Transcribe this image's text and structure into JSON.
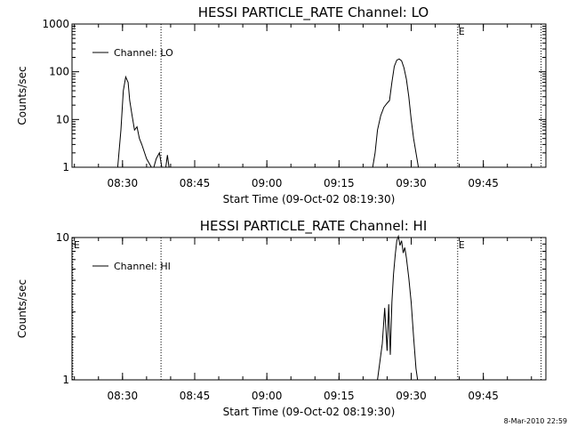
{
  "footer": {
    "timestamp": "8-Mar-2010 22:59"
  },
  "chart_data": [
    {
      "type": "line",
      "title": "HESSI PARTICLE_RATE Channel: LO",
      "xlabel": "Start Time (09-Oct-02 08:19:30)",
      "ylabel": "Counts/sec",
      "yscale": "log",
      "ylim": [
        1,
        1000
      ],
      "xlim": [
        "08:19:30",
        "09:58:00"
      ],
      "y_ticks": [
        "1",
        "10",
        "100",
        "1000"
      ],
      "x_ticks": [
        "08:30",
        "08:45",
        "09:00",
        "09:15",
        "09:30",
        "09:45"
      ],
      "legend": {
        "entry": "Channel: LO",
        "placement": "top-left"
      },
      "markers": [
        {
          "time": "08:38:00",
          "label": ""
        },
        {
          "time": "09:39:40",
          "label": "E"
        },
        {
          "time": "09:57:00",
          "label": ""
        }
      ],
      "series": [
        {
          "name": "Channel: LO",
          "x": [
            "08:29:00",
            "08:29:40",
            "08:30:10",
            "08:30:40",
            "08:31:10",
            "08:31:30",
            "08:32:00",
            "08:32:30",
            "08:33:00",
            "08:33:30",
            "08:34:00",
            "08:35:00",
            "08:36:00",
            "08:36:30",
            "08:37:00",
            "08:37:40",
            "08:38:10",
            "08:38:40",
            "08:39:00",
            "08:39:20",
            "08:39:40",
            "08:40:00",
            "08:40:20",
            "09:22:00",
            "09:22:30",
            "09:23:00",
            "09:23:40",
            "09:24:20",
            "09:25:00",
            "09:25:30",
            "09:26:00",
            "09:26:30",
            "09:27:00",
            "09:27:30",
            "09:28:00",
            "09:28:30",
            "09:29:00",
            "09:29:30",
            "09:30:00",
            "09:30:30",
            "09:31:00",
            "09:31:30",
            "09:32:00",
            "09:32:30",
            "09:33:00"
          ],
          "y": [
            1,
            6,
            40,
            78,
            60,
            25,
            12,
            6,
            7,
            4,
            3,
            1.5,
            1,
            1,
            1.5,
            2,
            1,
            1,
            1,
            1.8,
            1,
            1,
            1,
            1,
            2,
            6,
            12,
            18,
            22,
            25,
            60,
            130,
            175,
            185,
            170,
            120,
            70,
            30,
            10,
            4,
            2,
            1,
            1,
            1,
            1
          ]
        }
      ]
    },
    {
      "type": "line",
      "title": "HESSI PARTICLE_RATE Channel: HI",
      "xlabel": "Start Time (09-Oct-02 08:19:30)",
      "ylabel": "Counts/sec",
      "yscale": "log",
      "ylim": [
        1,
        10
      ],
      "xlim": [
        "08:19:30",
        "09:58:00"
      ],
      "y_ticks": [
        "1",
        "10"
      ],
      "x_ticks": [
        "08:30",
        "08:45",
        "09:00",
        "09:15",
        "09:30",
        "09:45"
      ],
      "legend": {
        "entry": "Channel: HI",
        "placement": "top-left"
      },
      "markers": [
        {
          "time": "08:19:40",
          "label": "E"
        },
        {
          "time": "08:38:00",
          "label": ""
        },
        {
          "time": "09:39:40",
          "label": "E"
        },
        {
          "time": "09:57:00",
          "label": ""
        }
      ],
      "series": [
        {
          "name": "Channel: HI",
          "x": [
            "09:23:00",
            "09:24:00",
            "09:24:30",
            "09:25:00",
            "09:25:20",
            "09:25:40",
            "09:26:00",
            "09:26:20",
            "09:26:40",
            "09:27:00",
            "09:27:20",
            "09:27:40",
            "09:28:00",
            "09:28:20",
            "09:28:40",
            "09:29:00",
            "09:29:30",
            "09:30:00",
            "09:30:30",
            "09:31:00",
            "09:31:20"
          ],
          "y": [
            1,
            1.8,
            3.2,
            1.6,
            3.4,
            1.5,
            3.5,
            5.5,
            7.5,
            9.5,
            10.2,
            8.8,
            9.5,
            7.8,
            8.5,
            7.2,
            5.2,
            3.5,
            2,
            1.2,
            1
          ]
        }
      ]
    }
  ]
}
